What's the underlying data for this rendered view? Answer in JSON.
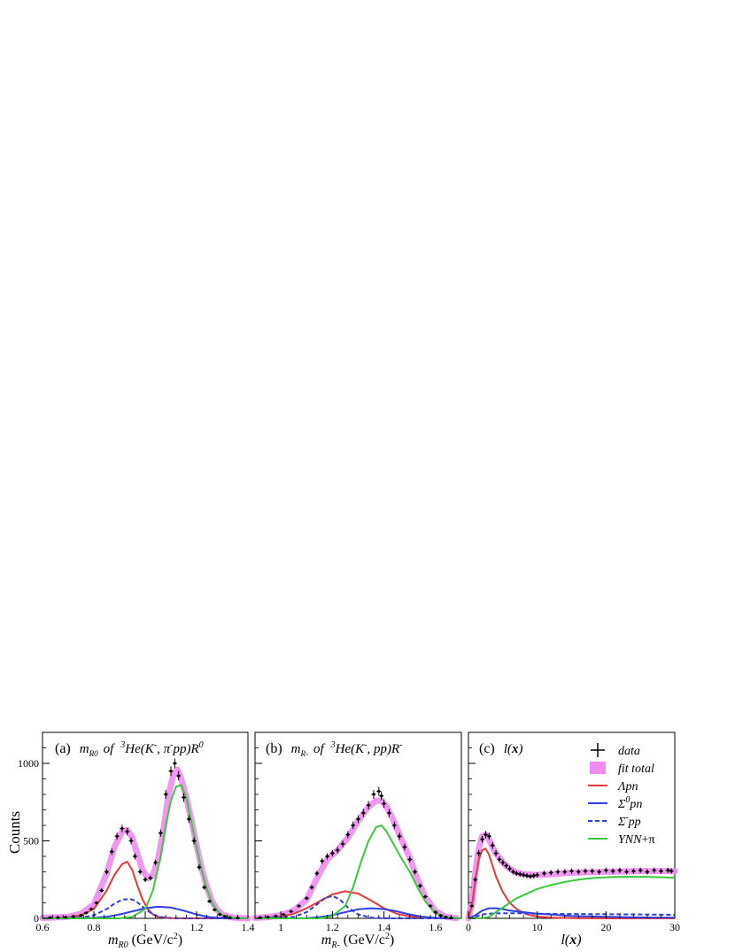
{
  "chart_data": [
    {
      "type": "line",
      "panel_label": "(a)",
      "title_parts": [
        "m",
        "R0",
        "of",
        "3",
        "He(K",
        "-",
        ", ",
        "π",
        "-",
        "pp)R",
        "0"
      ],
      "xlabel_parts": [
        "m",
        "R0",
        " (GeV/c",
        "2",
        ")"
      ],
      "ylabel": "Counts",
      "xlim": [
        0.6,
        1.4
      ],
      "ylim": [
        0,
        1200
      ],
      "x_ticks": [
        "0.6",
        "0.8",
        "1",
        "1.2",
        "1.4"
      ],
      "y_ticks": [
        "0",
        "500",
        "1000"
      ],
      "series": [
        {
          "name": "data",
          "kind": "errorbar",
          "color": "#000000",
          "x": [
            0.63,
            0.66,
            0.69,
            0.72,
            0.75,
            0.77,
            0.79,
            0.81,
            0.83,
            0.85,
            0.87,
            0.89,
            0.91,
            0.93,
            0.945,
            0.96,
            0.98,
            1.0,
            1.02,
            1.04,
            1.06,
            1.08,
            1.1,
            1.115,
            1.13,
            1.15,
            1.17,
            1.19,
            1.21,
            1.23,
            1.25,
            1.27,
            1.29,
            1.31,
            1.33,
            1.36
          ],
          "y": [
            5,
            6,
            8,
            12,
            20,
            35,
            60,
            100,
            180,
            300,
            430,
            530,
            580,
            560,
            500,
            400,
            300,
            250,
            260,
            360,
            550,
            800,
            950,
            1000,
            920,
            780,
            640,
            500,
            330,
            200,
            110,
            55,
            25,
            12,
            5,
            2
          ]
        },
        {
          "name": "fit total",
          "kind": "band",
          "color": "#f08cf0",
          "x": [
            0.6,
            0.7,
            0.75,
            0.8,
            0.85,
            0.88,
            0.91,
            0.93,
            0.95,
            0.97,
            0.99,
            1.01,
            1.03,
            1.05,
            1.07,
            1.09,
            1.11,
            1.125,
            1.14,
            1.16,
            1.18,
            1.2,
            1.22,
            1.24,
            1.26,
            1.28,
            1.3,
            1.33,
            1.36,
            1.4
          ],
          "y": [
            3,
            10,
            30,
            90,
            290,
            460,
            560,
            570,
            520,
            410,
            310,
            260,
            275,
            380,
            560,
            790,
            930,
            960,
            900,
            780,
            630,
            470,
            320,
            200,
            110,
            55,
            25,
            8,
            3,
            0
          ]
        },
        {
          "name": "Λpn",
          "kind": "line",
          "color": "#e83838",
          "x": [
            0.6,
            0.7,
            0.75,
            0.8,
            0.85,
            0.88,
            0.91,
            0.93,
            0.95,
            0.97,
            0.99,
            1.01,
            1.03,
            1.05,
            1.08,
            1.1,
            1.15,
            1.2,
            1.3,
            1.4
          ],
          "y": [
            0,
            5,
            20,
            60,
            180,
            280,
            350,
            365,
            310,
            210,
            120,
            60,
            25,
            10,
            3,
            1,
            0,
            0,
            0,
            0
          ]
        },
        {
          "name": "Σ⁰pn",
          "kind": "line",
          "color": "#2d3ee6",
          "x": [
            0.6,
            0.8,
            0.85,
            0.9,
            0.95,
            1.0,
            1.05,
            1.1,
            1.15,
            1.2,
            1.25,
            1.3,
            1.35,
            1.4
          ],
          "y": [
            0,
            3,
            10,
            25,
            45,
            65,
            75,
            70,
            50,
            25,
            8,
            2,
            0,
            0
          ]
        },
        {
          "name": "Σ⁻pp",
          "kind": "dashed",
          "color": "#2d3ee6",
          "x": [
            0.6,
            0.75,
            0.8,
            0.85,
            0.88,
            0.91,
            0.94,
            0.96,
            0.98,
            1.0,
            1.03,
            1.06,
            1.1,
            1.15,
            1.2,
            1.4
          ],
          "y": [
            0,
            5,
            20,
            60,
            95,
            120,
            125,
            115,
            90,
            60,
            25,
            8,
            2,
            0,
            0,
            0
          ]
        },
        {
          "name": "YNN+π",
          "kind": "line",
          "color": "#3cc83c",
          "x": [
            0.6,
            0.9,
            0.95,
            1.0,
            1.03,
            1.06,
            1.08,
            1.1,
            1.12,
            1.14,
            1.16,
            1.18,
            1.2,
            1.22,
            1.24,
            1.26,
            1.28,
            1.3,
            1.33,
            1.36,
            1.4
          ],
          "y": [
            0,
            0,
            10,
            60,
            180,
            400,
            600,
            760,
            850,
            860,
            780,
            620,
            460,
            310,
            190,
            100,
            50,
            22,
            6,
            1,
            0
          ]
        }
      ]
    },
    {
      "type": "line",
      "panel_label": "(b)",
      "title_parts": [
        "m",
        "R-",
        "of",
        "3",
        "He(K",
        "-",
        ", pp)R",
        "-"
      ],
      "xlabel_parts": [
        "m",
        "R-",
        " (GeV/c",
        "2",
        ")"
      ],
      "xlim": [
        0.9,
        1.7
      ],
      "ylim": [
        0,
        1200
      ],
      "x_ticks": [
        "1",
        "1.2",
        "1.4",
        "1.6"
      ],
      "y_ticks": [],
      "series": [
        {
          "name": "data",
          "kind": "errorbar",
          "color": "#000000",
          "x": [
            0.92,
            0.95,
            0.98,
            1.01,
            1.04,
            1.07,
            1.1,
            1.12,
            1.14,
            1.16,
            1.18,
            1.2,
            1.22,
            1.24,
            1.26,
            1.28,
            1.3,
            1.32,
            1.34,
            1.36,
            1.38,
            1.39,
            1.4,
            1.42,
            1.44,
            1.46,
            1.48,
            1.5,
            1.52,
            1.54,
            1.56,
            1.58,
            1.6,
            1.62,
            1.64,
            1.66
          ],
          "y": [
            5,
            8,
            15,
            25,
            45,
            80,
            130,
            200,
            290,
            370,
            400,
            420,
            440,
            480,
            540,
            600,
            640,
            680,
            730,
            800,
            820,
            790,
            740,
            680,
            600,
            530,
            460,
            380,
            300,
            210,
            140,
            80,
            40,
            18,
            8,
            3
          ]
        },
        {
          "name": "fit total",
          "kind": "band",
          "color": "#f08cf0",
          "x": [
            0.9,
            0.95,
            1.0,
            1.05,
            1.1,
            1.14,
            1.18,
            1.22,
            1.26,
            1.3,
            1.34,
            1.37,
            1.39,
            1.41,
            1.44,
            1.47,
            1.5,
            1.53,
            1.56,
            1.6,
            1.64,
            1.68
          ],
          "y": [
            3,
            8,
            20,
            50,
            120,
            260,
            380,
            440,
            520,
            630,
            720,
            760,
            760,
            720,
            620,
            500,
            390,
            250,
            140,
            45,
            10,
            2
          ]
        },
        {
          "name": "Λpn",
          "kind": "line",
          "color": "#e83838",
          "x": [
            0.9,
            1.0,
            1.05,
            1.1,
            1.15,
            1.2,
            1.25,
            1.3,
            1.35,
            1.4,
            1.45,
            1.5,
            1.55,
            1.6,
            1.7
          ],
          "y": [
            0,
            10,
            30,
            65,
            110,
            155,
            175,
            160,
            115,
            65,
            30,
            12,
            4,
            1,
            0
          ]
        },
        {
          "name": "Σ⁰pn",
          "kind": "line",
          "color": "#2d3ee6",
          "x": [
            0.9,
            1.1,
            1.15,
            1.2,
            1.25,
            1.3,
            1.35,
            1.4,
            1.45,
            1.5,
            1.55,
            1.6,
            1.7
          ],
          "y": [
            0,
            2,
            8,
            20,
            40,
            58,
            65,
            60,
            45,
            25,
            10,
            3,
            0
          ]
        },
        {
          "name": "Σ⁻pp",
          "kind": "dashed",
          "color": "#2d3ee6",
          "x": [
            0.9,
            1.05,
            1.1,
            1.14,
            1.17,
            1.2,
            1.23,
            1.26,
            1.3,
            1.35,
            1.4,
            1.7
          ],
          "y": [
            0,
            10,
            40,
            90,
            130,
            145,
            120,
            70,
            25,
            5,
            0,
            0
          ]
        },
        {
          "name": "YNN+π",
          "kind": "line",
          "color": "#3cc83c",
          "x": [
            0.9,
            1.15,
            1.2,
            1.25,
            1.28,
            1.31,
            1.34,
            1.37,
            1.39,
            1.41,
            1.44,
            1.47,
            1.5,
            1.53,
            1.56,
            1.6,
            1.64,
            1.7
          ],
          "y": [
            0,
            0,
            15,
            80,
            200,
            360,
            500,
            590,
            600,
            560,
            470,
            380,
            300,
            200,
            110,
            35,
            8,
            0
          ]
        }
      ]
    },
    {
      "type": "line",
      "panel_label": "(c)",
      "title_parts": [
        "l(",
        "x",
        ")"
      ],
      "xlabel_parts": [
        "l(",
        "x",
        ")"
      ],
      "xlim": [
        0,
        30
      ],
      "ylim": [
        0,
        1200
      ],
      "x_ticks": [
        "0",
        "10",
        "20",
        "30"
      ],
      "y_ticks": [],
      "series": [
        {
          "name": "data",
          "kind": "errorbar",
          "color": "#000000",
          "x": [
            0.5,
            1,
            1.5,
            2,
            2.5,
            3,
            3.5,
            4,
            4.5,
            5,
            5.5,
            6,
            6.5,
            7,
            7.5,
            8,
            8.5,
            9,
            9.5,
            10,
            11,
            12,
            13,
            14,
            15,
            16,
            17,
            18,
            19,
            20,
            21,
            22,
            23,
            24,
            25,
            26,
            27,
            28,
            29,
            29.5
          ],
          "y": [
            80,
            250,
            420,
            510,
            540,
            530,
            470,
            420,
            380,
            360,
            340,
            320,
            300,
            290,
            285,
            280,
            275,
            270,
            275,
            280,
            290,
            295,
            300,
            300,
            305,
            300,
            305,
            305,
            300,
            310,
            305,
            310,
            300,
            305,
            310,
            300,
            310,
            305,
            310,
            305
          ]
        },
        {
          "name": "fit total",
          "kind": "band",
          "color": "#f08cf0",
          "x": [
            0,
            0.5,
            1,
            1.5,
            2,
            2.5,
            3,
            3.5,
            4,
            5,
            6,
            7,
            8,
            10,
            12,
            15,
            20,
            25,
            30
          ],
          "y": [
            0,
            100,
            300,
            450,
            530,
            540,
            510,
            460,
            420,
            360,
            320,
            295,
            285,
            280,
            285,
            295,
            300,
            305,
            305
          ]
        },
        {
          "name": "Λpn",
          "kind": "line",
          "color": "#e83838",
          "x": [
            0,
            0.5,
            1,
            1.5,
            2,
            2.5,
            3,
            3.5,
            4,
            5,
            6,
            7,
            8,
            9,
            10,
            12,
            15,
            20,
            30
          ],
          "y": [
            0,
            80,
            250,
            380,
            440,
            450,
            410,
            340,
            270,
            170,
            100,
            60,
            35,
            20,
            12,
            5,
            2,
            0,
            0
          ]
        },
        {
          "name": "Σ⁰pn",
          "kind": "line",
          "color": "#2d3ee6",
          "x": [
            0,
            1,
            2,
            3,
            4,
            5,
            6,
            8,
            10,
            12,
            15,
            20,
            25,
            30
          ],
          "y": [
            0,
            20,
            50,
            65,
            65,
            60,
            50,
            40,
            30,
            25,
            15,
            10,
            6,
            4
          ]
        },
        {
          "name": "Σ⁻pp",
          "kind": "dashed",
          "color": "#2d3ee6",
          "x": [
            0,
            1,
            2,
            3,
            4,
            6,
            8,
            10,
            15,
            20,
            25,
            30
          ],
          "y": [
            0,
            10,
            25,
            30,
            32,
            33,
            32,
            30,
            28,
            27,
            25,
            23
          ]
        },
        {
          "name": "YNN+π",
          "kind": "line",
          "color": "#3cc83c",
          "x": [
            0,
            2,
            3,
            4,
            5,
            6,
            7,
            8,
            10,
            12,
            14,
            16,
            18,
            20,
            22,
            24,
            26,
            28,
            30
          ],
          "y": [
            0,
            2,
            10,
            40,
            70,
            100,
            130,
            150,
            190,
            215,
            235,
            250,
            260,
            265,
            268,
            268,
            268,
            265,
            262
          ]
        }
      ]
    }
  ],
  "legend": {
    "placement": "top-right of panel (c)",
    "items": [
      {
        "marker": "cross",
        "label": "data",
        "color": "#000000"
      },
      {
        "marker": "box",
        "label": "fit total",
        "color": "#f08cf0"
      },
      {
        "marker": "line",
        "label": "Λpn",
        "color": "#e83838"
      },
      {
        "marker": "line",
        "label_parts": [
          "Σ",
          "0",
          "pn"
        ],
        "color": "#2d3ee6"
      },
      {
        "marker": "dash",
        "label_parts": [
          "Σ",
          "-",
          "pp"
        ],
        "color": "#2d3ee6"
      },
      {
        "marker": "line",
        "label_parts": [
          "YNN",
          "+π"
        ],
        "color": "#3cc83c"
      }
    ]
  }
}
